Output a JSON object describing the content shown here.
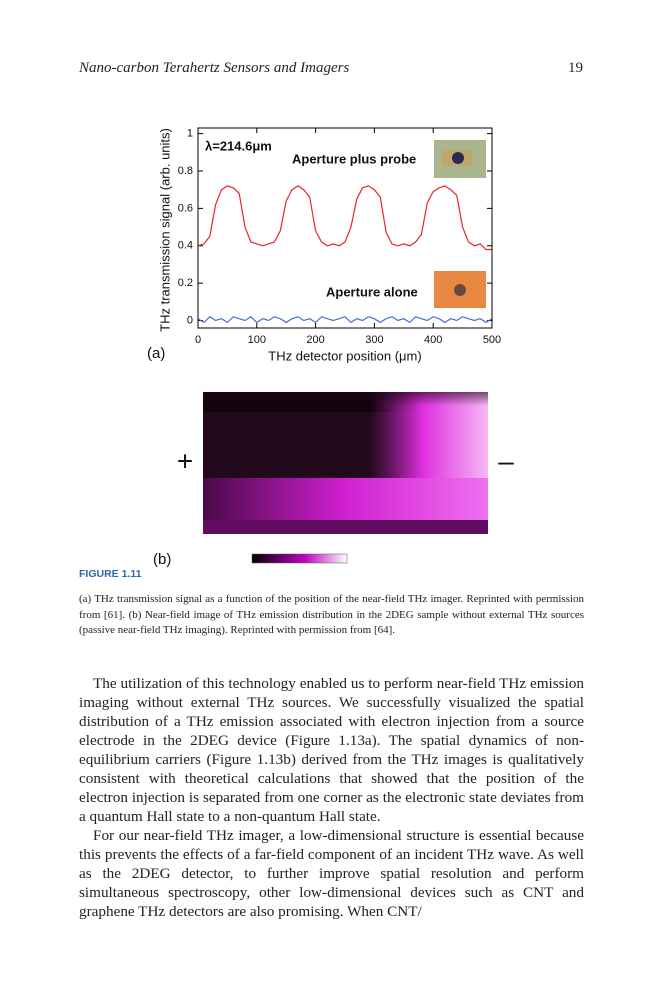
{
  "header": {
    "title": "Nano-carbon Terahertz Sensors and Imagers",
    "page_number": "19"
  },
  "chart_data": {
    "type": "line",
    "x_label": "THz detector position (μm)",
    "y_label": "THz transmission signal (arb. units)",
    "annotations": [
      "λ=214.6μm",
      "Aperture plus probe",
      "Aperture alone"
    ],
    "x": [
      0,
      10,
      20,
      30,
      40,
      50,
      60,
      70,
      80,
      90,
      100,
      110,
      120,
      130,
      140,
      150,
      160,
      170,
      180,
      190,
      200,
      210,
      220,
      230,
      240,
      250,
      260,
      270,
      280,
      290,
      300,
      310,
      320,
      330,
      340,
      350,
      360,
      370,
      380,
      390,
      400,
      410,
      420,
      430,
      440,
      450,
      460,
      470,
      480,
      490,
      500
    ],
    "series": [
      {
        "color": "#e8262b",
        "values": [
          0.4,
          0.41,
          0.45,
          0.62,
          0.7,
          0.72,
          0.71,
          0.68,
          0.5,
          0.42,
          0.41,
          0.4,
          0.41,
          0.42,
          0.48,
          0.64,
          0.7,
          0.72,
          0.7,
          0.66,
          0.48,
          0.42,
          0.4,
          0.41,
          0.4,
          0.42,
          0.5,
          0.65,
          0.71,
          0.72,
          0.7,
          0.66,
          0.47,
          0.41,
          0.4,
          0.41,
          0.4,
          0.42,
          0.46,
          0.63,
          0.69,
          0.71,
          0.72,
          0.7,
          0.67,
          0.5,
          0.42,
          0.4,
          0.41,
          0.38,
          0.38
        ]
      },
      {
        "color": "#4a6fd8",
        "values": [
          0.01,
          -0.01,
          0.02,
          0.0,
          0.01,
          -0.01,
          0.02,
          0.01,
          0.0,
          0.02,
          -0.01,
          0.01,
          0.0,
          0.02,
          0.01,
          -0.01,
          0.01,
          0.02,
          0.0,
          0.01,
          -0.01,
          0.02,
          0.01,
          0.0,
          0.01,
          0.02,
          -0.01,
          0.01,
          0.0,
          0.02,
          0.01,
          -0.01,
          0.01,
          0.02,
          0.0,
          0.01,
          -0.01,
          0.02,
          0.01,
          0.0,
          0.02,
          0.01,
          -0.01,
          0.01,
          0.0,
          0.02,
          0.01,
          0.0,
          0.01,
          -0.01,
          0.01
        ]
      }
    ],
    "xlim": [
      0,
      500
    ],
    "xticks": [
      0,
      100,
      200,
      300,
      400,
      500
    ],
    "ylim": [
      -0.04,
      1.03
    ],
    "yticks": [
      0,
      0.2,
      0.4,
      0.6,
      0.8,
      1
    ]
  },
  "figure": {
    "panel_labels": [
      "(a)",
      "(b)"
    ],
    "plus": "+",
    "minus": "–"
  },
  "caption": {
    "label": "FIGURE 1.11",
    "text": "(a) THz transmission signal as a function of the position of the near-field THz imager. Reprinted with permission from [61]. (b) Near-field image of THz emission distribution in the 2DEG sample without external THz sources (passive near-field THz imaging). Reprinted with permission from [64]."
  },
  "body": {
    "paragraphs": [
      "The utilization of this technology enabled us to perform near-field THz emission imaging without external THz sources. We successfully visualized the spatial distribution of a THz emission associated with electron injection from a source electrode in the 2DEG device (Figure 1.13a). The spatial dynamics of non-equilibrium carriers (Figure 1.13b) derived from the THz images is qualitatively consistent with theoretical calculations that showed that the position of the electron injection is separated from one corner as the electronic state deviates from a quantum Hall state to a non-quantum Hall state.",
      "For our near-field THz imager, a low-dimensional structure is essential because this prevents the effects of a far-field component of an incident THz wave. As well as the 2DEG detector, to further improve spatial resolution and perform simultaneous spectroscopy, other low-dimensional devices such as CNT and graphene THz detectors are also promising. When CNT/"
    ]
  }
}
